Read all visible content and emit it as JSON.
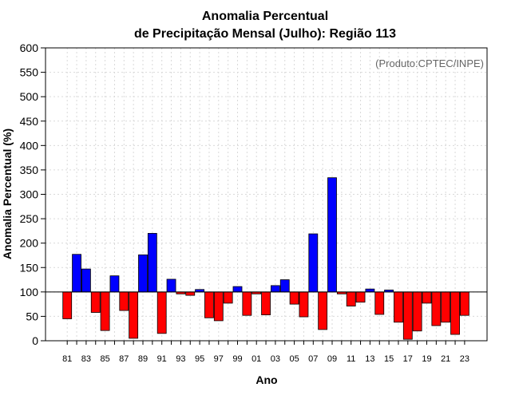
{
  "chart_data": {
    "type": "bar",
    "title": [
      "Anomalia Percentual",
      "de Precipitação Mensal (Julho): Região 113"
    ],
    "xlabel": "Ano",
    "ylabel": "Anomalia Percentual (%)",
    "annotation": "(Produto:CPTEC/INPE)",
    "ylim": [
      0,
      600
    ],
    "yticks": [
      0,
      50,
      100,
      150,
      200,
      250,
      300,
      350,
      400,
      450,
      500,
      550,
      600
    ],
    "baseline": 100,
    "grid": true,
    "colors": {
      "above": "#0000ff",
      "below": "#ff0000",
      "edge": "#000000",
      "grid": "#d9d9d9"
    },
    "categories": [
      "81",
      "82",
      "83",
      "84",
      "85",
      "86",
      "87",
      "88",
      "89",
      "90",
      "91",
      "92",
      "93",
      "94",
      "95",
      "96",
      "97",
      "98",
      "99",
      "00",
      "01",
      "02",
      "03",
      "04",
      "05",
      "06",
      "07",
      "08",
      "09",
      "10",
      "11",
      "12",
      "13",
      "14",
      "15",
      "16",
      "17",
      "18",
      "19",
      "20",
      "21",
      "22",
      "23"
    ],
    "xtick_labels": [
      "81",
      "83",
      "85",
      "87",
      "89",
      "91",
      "93",
      "95",
      "97",
      "99",
      "01",
      "03",
      "05",
      "07",
      "09",
      "11",
      "13",
      "15",
      "17",
      "19",
      "21",
      "23"
    ],
    "values": [
      45,
      177,
      147,
      58,
      21,
      133,
      62,
      5,
      176,
      220,
      15,
      126,
      96,
      93,
      105,
      47,
      41,
      77,
      111,
      52,
      96,
      53,
      113,
      125,
      75,
      49,
      219,
      23,
      334,
      96,
      71,
      79,
      106,
      54,
      104,
      38,
      3,
      20,
      77,
      31,
      38,
      13,
      52
    ]
  }
}
